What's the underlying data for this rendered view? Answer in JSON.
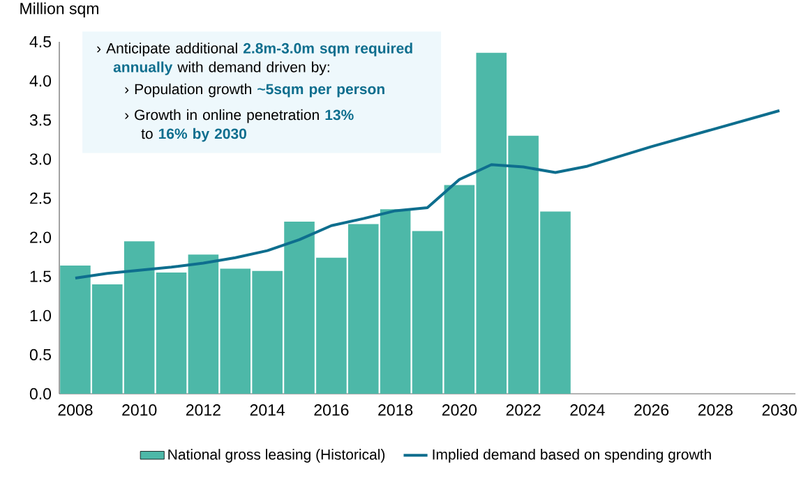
{
  "chart_data": {
    "type": "bar",
    "ylabel": "Million sqm",
    "xlim": [
      2007.5,
      2030.5
    ],
    "xticks": [
      2008,
      2010,
      2012,
      2014,
      2016,
      2018,
      2020,
      2022,
      2024,
      2026,
      2028,
      2030
    ],
    "ylim": [
      0,
      4.5
    ],
    "yticks": [
      {
        "value": 0,
        "label": "0.0"
      },
      0.5,
      {
        "value": 1,
        "label": "1.0"
      },
      1.5,
      {
        "value": 2,
        "label": "2.0"
      },
      2.5,
      {
        "value": 3,
        "label": "3.0"
      },
      3.5,
      {
        "value": 4,
        "label": "4.0"
      },
      4.5
    ],
    "series": [
      {
        "name": "National gross leasing (Historical)",
        "color": "#4db8a8",
        "x": [
          2008,
          2009,
          2010,
          2011,
          2012,
          2013,
          2014,
          2015,
          2016,
          2017,
          2018,
          2019,
          2020,
          2021,
          2022,
          2023
        ],
        "values": [
          1.64,
          1.4,
          1.95,
          1.55,
          1.78,
          1.6,
          1.57,
          2.2,
          1.74,
          2.17,
          2.36,
          2.08,
          2.67,
          4.36,
          3.3,
          2.33
        ]
      },
      {
        "type": "line",
        "name": "Implied demand based on spending growth",
        "color": "#0e6e8e",
        "x": [
          2008,
          2009,
          2010,
          2011,
          2012,
          2013,
          2014,
          2015,
          2016,
          2017,
          2018,
          2019,
          2020,
          2021,
          2022,
          2023,
          2024,
          2026,
          2028,
          2030
        ],
        "values": [
          1.48,
          1.54,
          1.58,
          1.62,
          1.67,
          1.74,
          1.83,
          1.97,
          2.15,
          2.24,
          2.34,
          2.38,
          2.74,
          2.93,
          2.9,
          2.83,
          2.91,
          3.16,
          3.39,
          3.62
        ]
      }
    ],
    "legend": "bottom",
    "annotations": [
      "› Anticipate additional **2.8m-3.0m sqm required annually** with demand driven by:",
      "› Population growth **~5sqm per person**",
      "› Growth in online penetration **13%** to **16% by 2030**"
    ]
  }
}
